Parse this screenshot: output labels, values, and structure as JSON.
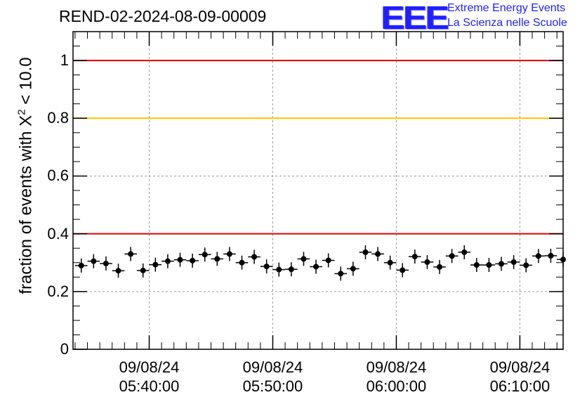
{
  "header": {
    "title": "REND-02-2024-08-09-00009",
    "logo_text": "EEE",
    "logo_line1": "Extreme Energy Events",
    "logo_line2": "La Scienza nelle Scuole"
  },
  "chart_data": {
    "type": "scatter",
    "ylabel_prefix": "fraction of events with X",
    "ylabel_sup": "2",
    "ylabel_suffix": " < 10.0",
    "ylim": [
      0,
      1.1
    ],
    "grid": true,
    "y_ticks": [
      {
        "value": 0,
        "label": "0"
      },
      {
        "value": 0.2,
        "label": "0.2"
      },
      {
        "value": 0.4,
        "label": "0.4"
      },
      {
        "value": 0.6,
        "label": "0.6"
      },
      {
        "value": 0.8,
        "label": "0.8"
      },
      {
        "value": 1,
        "label": "1"
      }
    ],
    "x_range_minutes": [
      "05:33:50",
      "06:13:30"
    ],
    "x_ticks": [
      {
        "time": "05:40:00",
        "date": "09/08/24",
        "label": "05:40:00"
      },
      {
        "time": "05:50:00",
        "date": "09/08/24",
        "label": "05:50:00"
      },
      {
        "time": "06:00:00",
        "date": "09/08/24",
        "label": "06:00:00"
      },
      {
        "time": "06:10:00",
        "date": "09/08/24",
        "label": "06:10:00"
      }
    ],
    "reference_lines": [
      {
        "value": 1.0,
        "color": "#e00000"
      },
      {
        "value": 0.8,
        "color": "#ffc000"
      },
      {
        "value": 0.4,
        "color": "#e00000"
      }
    ],
    "x_bin_halfwidth_seconds": 30,
    "series": [
      {
        "color": "#000000",
        "points": [
          {
            "x": "05:34:30",
            "y": 0.29
          },
          {
            "x": "05:35:30",
            "y": 0.305
          },
          {
            "x": "05:36:30",
            "y": 0.297
          },
          {
            "x": "05:37:30",
            "y": 0.272
          },
          {
            "x": "05:38:30",
            "y": 0.33
          },
          {
            "x": "05:39:30",
            "y": 0.273
          },
          {
            "x": "05:40:30",
            "y": 0.293
          },
          {
            "x": "05:41:30",
            "y": 0.305
          },
          {
            "x": "05:42:30",
            "y": 0.31
          },
          {
            "x": "05:43:30",
            "y": 0.307
          },
          {
            "x": "05:44:30",
            "y": 0.328
          },
          {
            "x": "05:45:30",
            "y": 0.313
          },
          {
            "x": "05:46:30",
            "y": 0.33
          },
          {
            "x": "05:47:30",
            "y": 0.3
          },
          {
            "x": "05:48:30",
            "y": 0.32
          },
          {
            "x": "05:49:30",
            "y": 0.287
          },
          {
            "x": "05:50:30",
            "y": 0.276
          },
          {
            "x": "05:51:30",
            "y": 0.277
          },
          {
            "x": "05:52:30",
            "y": 0.313
          },
          {
            "x": "05:53:30",
            "y": 0.286
          },
          {
            "x": "05:54:30",
            "y": 0.308
          },
          {
            "x": "05:55:30",
            "y": 0.262
          },
          {
            "x": "05:56:30",
            "y": 0.279
          },
          {
            "x": "05:57:30",
            "y": 0.336
          },
          {
            "x": "05:58:30",
            "y": 0.33
          },
          {
            "x": "05:59:30",
            "y": 0.3
          },
          {
            "x": "06:00:30",
            "y": 0.274
          },
          {
            "x": "06:01:30",
            "y": 0.321
          },
          {
            "x": "06:02:30",
            "y": 0.302
          },
          {
            "x": "06:03:30",
            "y": 0.285
          },
          {
            "x": "06:04:30",
            "y": 0.323
          },
          {
            "x": "06:05:30",
            "y": 0.336
          },
          {
            "x": "06:06:30",
            "y": 0.292
          },
          {
            "x": "06:07:30",
            "y": 0.292
          },
          {
            "x": "06:08:30",
            "y": 0.296
          },
          {
            "x": "06:09:30",
            "y": 0.302
          },
          {
            "x": "06:10:30",
            "y": 0.291
          },
          {
            "x": "06:11:30",
            "y": 0.323
          },
          {
            "x": "06:12:30",
            "y": 0.324
          },
          {
            "x": "06:13:30",
            "y": 0.311
          }
        ]
      }
    ]
  }
}
